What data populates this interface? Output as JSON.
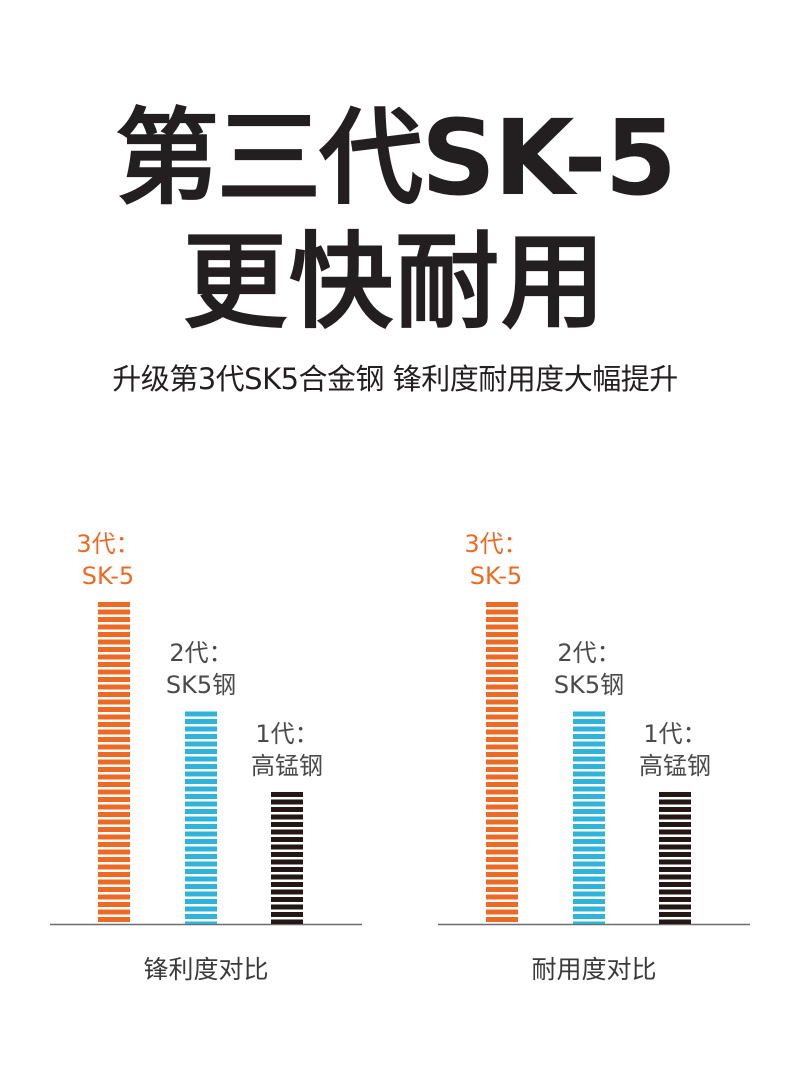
{
  "headline": {
    "line1": "第三代SK-5",
    "line2": "更快耐用"
  },
  "subheadline": "升级第3代SK5合金钢 锋利度耐用度大幅提升",
  "chart_data": [
    {
      "type": "bar",
      "title": "锋利度对比",
      "categories": [
        "3代：SK-5",
        "2代：SK5钢",
        "1代：高锰钢"
      ],
      "label_lines": [
        [
          "3代：",
          "SK-5"
        ],
        [
          "2代：",
          "SK5钢"
        ],
        [
          "1代：",
          "高锰钢"
        ]
      ],
      "values": [
        100,
        66,
        41
      ],
      "colors": [
        "#ec6a24",
        "#2fb3da",
        "#231815"
      ],
      "label_colors": [
        "#ec6a24",
        "#4a4a4a",
        "#4a4a4a"
      ],
      "grid": false,
      "legend": "none"
    },
    {
      "type": "bar",
      "title": "耐用度对比",
      "categories": [
        "3代：SK-5",
        "2代：SK5钢",
        "1代：高锰钢"
      ],
      "label_lines": [
        [
          "3代：",
          "SK-5"
        ],
        [
          "2代：",
          "SK5钢"
        ],
        [
          "1代：",
          "高锰钢"
        ]
      ],
      "values": [
        100,
        66,
        41
      ],
      "colors": [
        "#ec6a24",
        "#2fb3da",
        "#231815"
      ],
      "label_colors": [
        "#ec6a24",
        "#4a4a4a",
        "#4a4a4a"
      ],
      "grid": false,
      "legend": "none"
    }
  ]
}
